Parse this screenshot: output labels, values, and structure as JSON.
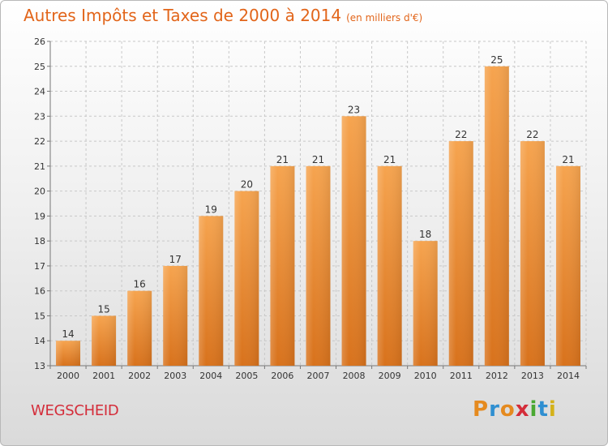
{
  "title": "Autres Impôts et Taxes de 2000 à 2014",
  "subtitle": "(en milliers d'€)",
  "commune": "WEGSCHEID",
  "logo": {
    "letters": [
      "P",
      "r",
      "o",
      "x",
      "i",
      "t",
      "i"
    ],
    "colors": [
      "#e58a1f",
      "#2f8fd1",
      "#e58a1f",
      "#d42d3a",
      "#4aa832",
      "#2f8fd1",
      "#d4b21a"
    ]
  },
  "chart_data": {
    "type": "bar",
    "categories": [
      "2000",
      "2001",
      "2002",
      "2003",
      "2004",
      "2005",
      "2006",
      "2007",
      "2008",
      "2009",
      "2010",
      "2011",
      "2012",
      "2013",
      "2014"
    ],
    "values": [
      14,
      15,
      16,
      17,
      19,
      20,
      21,
      21,
      23,
      21,
      18,
      22,
      25,
      22,
      21
    ],
    "ylim": [
      13,
      26
    ],
    "yticks": [
      13,
      14,
      15,
      16,
      17,
      18,
      19,
      20,
      21,
      22,
      23,
      24,
      25,
      26
    ],
    "grid": true,
    "bar_color_top": "#f6a44f",
    "bar_color_bottom": "#d8721c"
  }
}
